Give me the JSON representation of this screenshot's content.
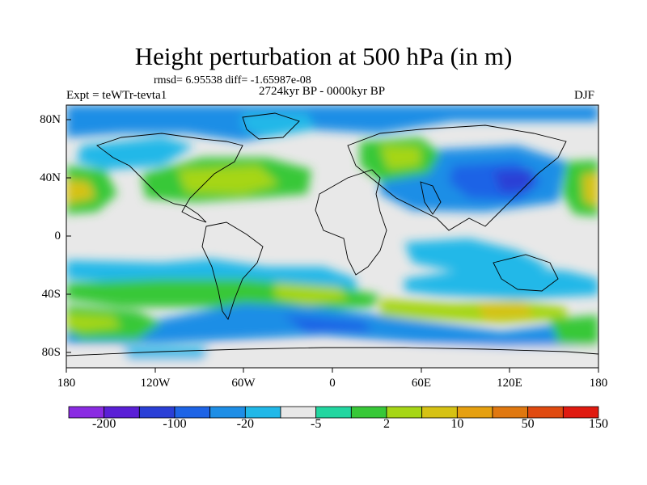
{
  "title": "Height perturbation at 500 hPa (in m)",
  "stats": "rmsd= 6.95538 diff= -1.65987e-08",
  "period": "2724kyr BP - 0000kyr BP",
  "experiment": "Expt = teWTr-tevta1",
  "season": "DJF",
  "map": {
    "lat_ticks": [
      "80N",
      "40N",
      "0",
      "40S",
      "80S"
    ],
    "lon_ticks": [
      "180",
      "120W",
      "60W",
      "0",
      "60E",
      "120E",
      "180"
    ],
    "background_color": "#e8e8e8",
    "land_outline_color": "#000000"
  },
  "colorbar": {
    "labels": [
      "-200",
      "-100",
      "-20",
      "-5",
      "2",
      "10",
      "50",
      "150"
    ],
    "colors": [
      "#8a2be2",
      "#5a1fd6",
      "#2a3fd6",
      "#1e64e6",
      "#1e8ee6",
      "#21b8e8",
      "#e8e8e8",
      "#22d6a0",
      "#38c838",
      "#a6d616",
      "#d6c214",
      "#e6a010",
      "#e07810",
      "#e04a10",
      "#e01a10"
    ]
  }
}
